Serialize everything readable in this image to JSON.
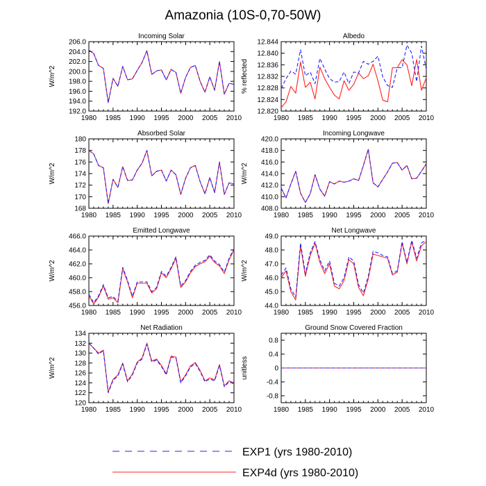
{
  "title": "Amazonia (10S-0,70-50W)",
  "colors": {
    "exp1": "#1f1fff",
    "exp4d": "#ff1f1f",
    "axis": "#000000",
    "bg": "#ffffff"
  },
  "legend": {
    "entries": [
      {
        "name": "EXP1 (yrs 1980-2010)",
        "style": "dashed",
        "color": "#1f1fff"
      },
      {
        "name": "EXP4d (yrs 1980-2010)",
        "style": "solid",
        "color": "#ff1f1f"
      }
    ]
  },
  "chart_data": [
    {
      "type": "line",
      "title": "Incoming Solar",
      "ylabel": "W/m^2",
      "x": [
        1980,
        1981,
        1982,
        1983,
        1984,
        1985,
        1986,
        1987,
        1988,
        1989,
        1990,
        1991,
        1992,
        1993,
        1994,
        1995,
        1996,
        1997,
        1998,
        1999,
        2000,
        2001,
        2002,
        2003,
        2004,
        2005,
        2006,
        2007,
        2008,
        2009,
        2010
      ],
      "xlim": [
        1980,
        2010
      ],
      "xticks": [
        "1980",
        "1985",
        "1990",
        "1995",
        "2000",
        "2005",
        "2010"
      ],
      "ylim": [
        192,
        206
      ],
      "yticks": [
        "192.0",
        "194.0",
        "196.0",
        "198.0",
        "200.0",
        "202.0",
        "204.0",
        "206.0"
      ],
      "series": [
        {
          "name": "EXP1",
          "values": [
            204.3,
            203.6,
            201.2,
            200.6,
            193.7,
            198.6,
            197.0,
            201.0,
            198.3,
            198.5,
            200.2,
            201.8,
            204.2,
            199.4,
            200.1,
            200.3,
            198.3,
            200.4,
            199.8,
            195.6,
            198.8,
            200.8,
            201.2,
            198.0,
            195.8,
            198.9,
            196.2,
            202.0,
            195.4,
            197.6,
            197.4
          ]
        },
        {
          "name": "EXP4d",
          "values": [
            204.3,
            203.6,
            201.2,
            200.6,
            193.7,
            198.6,
            197.0,
            201.0,
            198.3,
            198.5,
            200.2,
            201.8,
            204.2,
            199.4,
            200.1,
            200.3,
            198.3,
            200.4,
            199.8,
            195.6,
            198.8,
            200.8,
            201.2,
            198.0,
            195.8,
            198.9,
            196.2,
            202.0,
            195.4,
            197.6,
            197.4
          ]
        }
      ]
    },
    {
      "type": "line",
      "title": "Albedo",
      "ylabel": "% reflected",
      "x": [
        1980,
        1981,
        1982,
        1983,
        1984,
        1985,
        1986,
        1987,
        1988,
        1989,
        1990,
        1991,
        1992,
        1993,
        1994,
        1995,
        1996,
        1997,
        1998,
        1999,
        2000,
        2001,
        2002,
        2003,
        2004,
        2005,
        2006,
        2007,
        2008,
        2009,
        2010
      ],
      "xlim": [
        1980,
        2010
      ],
      "xticks": [
        "1980",
        "1985",
        "1990",
        "1995",
        "2000",
        "2005",
        "2010"
      ],
      "ylim": [
        12.82,
        12.844
      ],
      "yticks": [
        "12.820",
        "12.824",
        "12.828",
        "12.832",
        "12.836",
        "12.840",
        "12.844"
      ],
      "series": [
        {
          "name": "EXP1",
          "values": [
            12.8278,
            12.8312,
            12.8338,
            12.8328,
            12.8412,
            12.8322,
            12.8335,
            12.8295,
            12.8382,
            12.8345,
            12.8312,
            12.83,
            12.8302,
            12.8335,
            12.8295,
            12.8335,
            12.8332,
            12.8372,
            12.8362,
            12.8372,
            12.839,
            12.8318,
            12.8288,
            12.8282,
            12.835,
            12.835,
            12.8428,
            12.84,
            12.8302,
            12.8425,
            12.8345
          ]
        },
        {
          "name": "EXP4d",
          "values": [
            12.8212,
            12.8232,
            12.8285,
            12.8262,
            12.837,
            12.8282,
            12.83,
            12.8242,
            12.8352,
            12.8312,
            12.8282,
            12.8255,
            12.8242,
            12.8305,
            12.8272,
            12.8292,
            12.8332,
            12.8312,
            12.8322,
            12.8362,
            12.8305,
            12.8238,
            12.8232,
            12.835,
            12.835,
            12.8378,
            12.836,
            12.8288,
            12.8378,
            12.8272,
            12.8315
          ]
        }
      ]
    },
    {
      "type": "line",
      "title": "Absorbed Solar",
      "ylabel": "W/m^2",
      "x": [
        1980,
        1981,
        1982,
        1983,
        1984,
        1985,
        1986,
        1987,
        1988,
        1989,
        1990,
        1991,
        1992,
        1993,
        1994,
        1995,
        1996,
        1997,
        1998,
        1999,
        2000,
        2001,
        2002,
        2003,
        2004,
        2005,
        2006,
        2007,
        2008,
        2009,
        2010
      ],
      "xlim": [
        1980,
        2010
      ],
      "xticks": [
        "1980",
        "1985",
        "1990",
        "1995",
        "2000",
        "2005",
        "2010"
      ],
      "ylim": [
        168,
        180
      ],
      "yticks": [
        "168",
        "170",
        "172",
        "174",
        "176",
        "178",
        "180"
      ],
      "series": [
        {
          "name": "EXP1",
          "values": [
            178.0,
            177.4,
            175.4,
            175.0,
            168.8,
            173.0,
            171.6,
            175.2,
            172.8,
            172.9,
            174.6,
            175.8,
            178.0,
            173.6,
            174.4,
            174.6,
            172.7,
            174.6,
            173.8,
            170.4,
            173.2,
            175.0,
            175.4,
            172.6,
            170.5,
            173.3,
            170.7,
            176.0,
            170.4,
            172.4,
            172.2
          ]
        },
        {
          "name": "EXP4d",
          "values": [
            178.0,
            177.4,
            175.4,
            175.0,
            168.8,
            173.0,
            171.6,
            175.2,
            172.8,
            172.9,
            174.6,
            175.8,
            178.0,
            173.6,
            174.4,
            174.6,
            172.7,
            174.6,
            173.8,
            170.4,
            173.2,
            175.0,
            175.4,
            172.6,
            170.5,
            173.3,
            170.7,
            176.0,
            170.4,
            172.4,
            172.2
          ]
        }
      ]
    },
    {
      "type": "line",
      "title": "Incoming Longwave",
      "ylabel": "W/m^2",
      "x": [
        1980,
        1981,
        1982,
        1983,
        1984,
        1985,
        1986,
        1987,
        1988,
        1989,
        1990,
        1991,
        1992,
        1993,
        1994,
        1995,
        1996,
        1997,
        1998,
        1999,
        2000,
        2001,
        2002,
        2003,
        2004,
        2005,
        2006,
        2007,
        2008,
        2009,
        2010
      ],
      "xlim": [
        1980,
        2010
      ],
      "xticks": [
        "1980",
        "1985",
        "1990",
        "1995",
        "2000",
        "2005",
        "2010"
      ],
      "ylim": [
        408,
        420
      ],
      "yticks": [
        "408.0",
        "410.0",
        "412.0",
        "414.0",
        "416.0",
        "418.0",
        "420.0"
      ],
      "series": [
        {
          "name": "EXP1",
          "values": [
            411.5,
            409.8,
            412.2,
            414.4,
            410.6,
            409.0,
            410.5,
            413.8,
            411.3,
            410.1,
            412.6,
            412.2,
            412.7,
            412.5,
            412.7,
            413.1,
            412.8,
            415.4,
            418.2,
            412.4,
            411.7,
            413.0,
            414.3,
            415.8,
            415.9,
            414.6,
            415.4,
            413.1,
            413.2,
            414.4,
            415.7
          ]
        },
        {
          "name": "EXP4d",
          "values": [
            411.5,
            409.8,
            412.2,
            414.4,
            410.6,
            409.0,
            410.5,
            413.8,
            411.3,
            410.1,
            412.6,
            412.2,
            412.7,
            412.5,
            412.7,
            413.1,
            412.8,
            415.4,
            418.2,
            412.4,
            411.7,
            413.0,
            414.3,
            415.8,
            415.9,
            414.6,
            415.4,
            413.1,
            413.2,
            414.4,
            415.7
          ]
        }
      ]
    },
    {
      "type": "line",
      "title": "Emitted Longwave",
      "ylabel": "W/m^2",
      "x": [
        1980,
        1981,
        1982,
        1983,
        1984,
        1985,
        1986,
        1987,
        1988,
        1989,
        1990,
        1991,
        1992,
        1993,
        1994,
        1995,
        1996,
        1997,
        1998,
        1999,
        2000,
        2001,
        2002,
        2003,
        2004,
        2005,
        2006,
        2007,
        2008,
        2009,
        2010
      ],
      "xlim": [
        1980,
        2010
      ],
      "xticks": [
        "1980",
        "1985",
        "1990",
        "1995",
        "2000",
        "2005",
        "2010"
      ],
      "ylim": [
        456,
        466
      ],
      "yticks": [
        "456.0",
        "458.0",
        "460.0",
        "462.0",
        "464.0",
        "466.0"
      ],
      "series": [
        {
          "name": "EXP1",
          "values": [
            457.6,
            456.4,
            457.4,
            459.0,
            457.1,
            457.3,
            456.6,
            461.5,
            459.6,
            457.3,
            459.4,
            459.4,
            459.4,
            458.0,
            458.6,
            460.9,
            460.2,
            461.5,
            463.0,
            458.8,
            459.6,
            460.9,
            461.8,
            462.2,
            462.5,
            463.3,
            462.4,
            461.9,
            460.8,
            462.8,
            464.2
          ]
        },
        {
          "name": "EXP4d",
          "values": [
            457.4,
            456.2,
            457.2,
            458.8,
            456.9,
            457.1,
            456.4,
            461.3,
            459.4,
            457.1,
            459.2,
            459.2,
            459.2,
            457.8,
            458.4,
            460.7,
            460.0,
            461.3,
            462.8,
            458.6,
            459.4,
            460.7,
            461.6,
            462.0,
            462.3,
            463.1,
            462.2,
            461.7,
            460.6,
            462.6,
            464.0
          ]
        }
      ]
    },
    {
      "type": "line",
      "title": "Net Longwave",
      "ylabel": "W/m^2",
      "x": [
        1980,
        1981,
        1982,
        1983,
        1984,
        1985,
        1986,
        1987,
        1988,
        1989,
        1990,
        1991,
        1992,
        1993,
        1994,
        1995,
        1996,
        1997,
        1998,
        1999,
        2000,
        2001,
        2002,
        2003,
        2004,
        2005,
        2006,
        2007,
        2008,
        2009,
        2010
      ],
      "xlim": [
        1980,
        2010
      ],
      "xticks": [
        "1980",
        "1985",
        "1990",
        "1995",
        "2000",
        "2005",
        "2010"
      ],
      "ylim": [
        44,
        49
      ],
      "yticks": [
        "44.0",
        "45.0",
        "46.0",
        "47.0",
        "48.0",
        "49.0"
      ],
      "series": [
        {
          "name": "EXP1",
          "values": [
            46.2,
            46.7,
            45.2,
            44.6,
            48.5,
            46.3,
            47.8,
            48.6,
            47.3,
            46.5,
            47.2,
            45.6,
            45.4,
            46.0,
            47.5,
            47.2,
            45.5,
            44.9,
            46.1,
            47.9,
            47.8,
            47.6,
            47.5,
            46.3,
            46.5,
            48.6,
            47.1,
            48.7,
            47.4,
            48.5,
            48.7
          ]
        },
        {
          "name": "EXP4d",
          "values": [
            46.0,
            46.5,
            45.0,
            44.4,
            48.3,
            46.1,
            47.6,
            48.5,
            47.1,
            46.3,
            47.0,
            45.4,
            45.2,
            45.8,
            47.3,
            47.0,
            45.3,
            44.7,
            45.9,
            47.7,
            47.6,
            47.5,
            47.4,
            46.2,
            46.4,
            48.5,
            47.0,
            48.6,
            47.2,
            48.3,
            48.6
          ]
        }
      ]
    },
    {
      "type": "line",
      "title": "Net Radiation",
      "ylabel": "W/m^2",
      "x": [
        1980,
        1981,
        1982,
        1983,
        1984,
        1985,
        1986,
        1987,
        1988,
        1989,
        1990,
        1991,
        1992,
        1993,
        1994,
        1995,
        1996,
        1997,
        1998,
        1999,
        2000,
        2001,
        2002,
        2003,
        2004,
        2005,
        2006,
        2007,
        2008,
        2009,
        2010
      ],
      "xlim": [
        1980,
        2010
      ],
      "xticks": [
        "1980",
        "1985",
        "1990",
        "1995",
        "2000",
        "2005",
        "2010"
      ],
      "ylim": [
        120,
        134
      ],
      "yticks": [
        "120",
        "122",
        "124",
        "126",
        "128",
        "130",
        "132",
        "134"
      ],
      "series": [
        {
          "name": "EXP1",
          "values": [
            132.0,
            131.0,
            129.8,
            130.5,
            122.0,
            124.5,
            125.4,
            127.8,
            124.2,
            125.6,
            128.0,
            128.8,
            131.8,
            128.2,
            128.6,
            127.3,
            125.6,
            129.2,
            129.0,
            124.0,
            125.4,
            127.2,
            127.9,
            126.3,
            124.2,
            124.8,
            124.4,
            127.5,
            123.2,
            124.2,
            123.8
          ]
        },
        {
          "name": "EXP4d",
          "values": [
            132.0,
            131.0,
            130.0,
            130.6,
            122.2,
            124.7,
            125.6,
            128.0,
            124.4,
            125.8,
            128.2,
            129.0,
            132.0,
            128.4,
            128.8,
            127.5,
            125.8,
            129.4,
            129.2,
            124.2,
            125.6,
            127.4,
            128.1,
            126.5,
            124.4,
            125.0,
            124.6,
            127.7,
            123.4,
            124.4,
            124.0
          ]
        }
      ]
    },
    {
      "type": "line",
      "title": "Ground Snow Covered Fraction",
      "ylabel": "unitless",
      "x": [
        1980,
        1981,
        1982,
        1983,
        1984,
        1985,
        1986,
        1987,
        1988,
        1989,
        1990,
        1991,
        1992,
        1993,
        1994,
        1995,
        1996,
        1997,
        1998,
        1999,
        2000,
        2001,
        2002,
        2003,
        2004,
        2005,
        2006,
        2007,
        2008,
        2009,
        2010
      ],
      "xlim": [
        1980,
        2010
      ],
      "xticks": [
        "1980",
        "1985",
        "1990",
        "1995",
        "2000",
        "2005",
        "2010"
      ],
      "ylim": [
        -1,
        1
      ],
      "yticks": [
        "-0.8",
        "-0.4",
        "0",
        "0.4",
        "0.8"
      ],
      "ytick_values": [
        -0.8,
        -0.4,
        0,
        0.4,
        0.8
      ],
      "series": [
        {
          "name": "EXP1",
          "values": [
            0,
            0,
            0,
            0,
            0,
            0,
            0,
            0,
            0,
            0,
            0,
            0,
            0,
            0,
            0,
            0,
            0,
            0,
            0,
            0,
            0,
            0,
            0,
            0,
            0,
            0,
            0,
            0,
            0,
            0,
            0
          ]
        },
        {
          "name": "EXP4d",
          "values": [
            0,
            0,
            0,
            0,
            0,
            0,
            0,
            0,
            0,
            0,
            0,
            0,
            0,
            0,
            0,
            0,
            0,
            0,
            0,
            0,
            0,
            0,
            0,
            0,
            0,
            0,
            0,
            0,
            0,
            0,
            0
          ]
        }
      ]
    }
  ]
}
